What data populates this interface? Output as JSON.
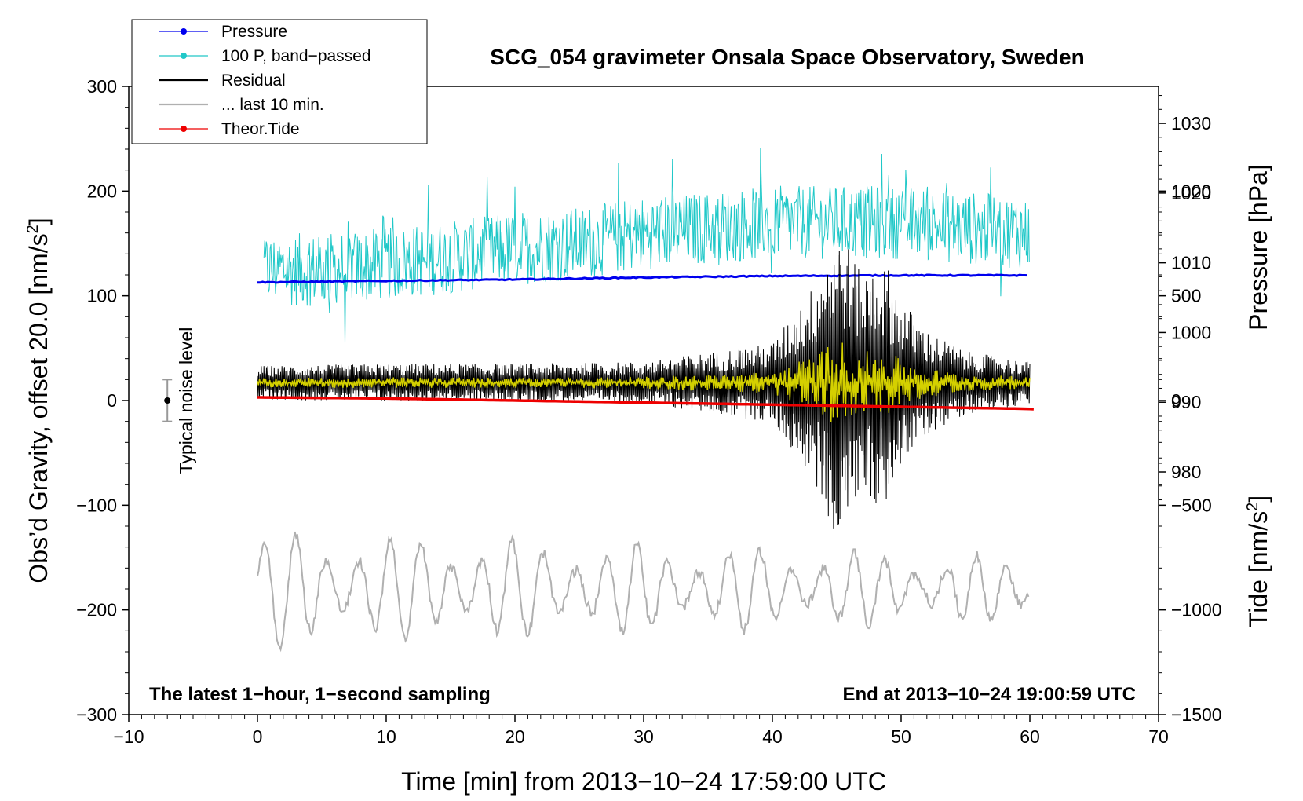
{
  "chart_data": {
    "type": "line",
    "title": "SCG_054 gravimeter Onsala Space Observatory, Sweden",
    "xlabel": "Time [min] from 2013−10−24 17:59:00 UTC",
    "ylabel": "Obs’d Gravity, offset 20.0 [nm/s",
    "ylabel_sup": "2",
    "ylabel_end": "]",
    "y2label": "Pressure [hPa]",
    "y3label": "Tide [nm/s",
    "y3label_sup": "2",
    "y3label_end": "]",
    "xlim": [
      -10,
      70
    ],
    "ylim": [
      -300,
      300
    ],
    "pressure_axis": {
      "ticks": [
        980,
        990,
        1000,
        1010,
        1020,
        1030
      ],
      "tick_labels": [
        "980",
        "990",
        "1000",
        "1010",
        "1020",
        "1030"
      ],
      "range": [
        945.2,
        1035.3
      ]
    },
    "tide_axis": {
      "ticks": [
        -1500,
        -1000,
        -500,
        0,
        500,
        1000
      ],
      "tick_labels": [
        "−1500",
        "−1000",
        "−500",
        "0",
        "500",
        "1000"
      ],
      "range": [
        -1500,
        1500
      ]
    },
    "x_ticks": [
      -10,
      0,
      10,
      20,
      30,
      40,
      50,
      60,
      70
    ],
    "x_tick_labels": [
      "−10",
      "0",
      "10",
      "20",
      "30",
      "40",
      "50",
      "60",
      "70"
    ],
    "y_ticks": [
      -300,
      -200,
      -100,
      0,
      100,
      200,
      300
    ],
    "y_tick_labels": [
      "−300",
      "−200",
      "−100",
      "0",
      "100",
      "200",
      "300"
    ],
    "annotations": {
      "bottom_left": "The latest 1−hour, 1−second sampling",
      "bottom_right": "End at 2013−10−24 19:00:59 UTC",
      "noise_label": "Typical noise level"
    },
    "noise_bar": {
      "x": -7,
      "center": 0,
      "half_range": 20
    },
    "legend": [
      {
        "name": "Pressure",
        "color": "#0000ee",
        "marker": true
      },
      {
        "name": "100 P, band−passed",
        "color": "#20c8c8",
        "marker": true
      },
      {
        "name": "Residual",
        "color": "#000000",
        "marker": false
      },
      {
        "name": "... last 10 min.",
        "color": "#b0b0b0",
        "marker": false
      },
      {
        "name": "Theor.Tide",
        "color": "#ee0000",
        "marker": true
      }
    ],
    "series": [
      {
        "name": "Pressure",
        "axis": "pressure",
        "color": "#0000ee",
        "x": [
          0,
          10,
          20,
          30,
          40,
          50,
          60
        ],
        "values": [
          1007.2,
          1007.4,
          1007.6,
          1007.9,
          1008.1,
          1008.2,
          1008.2
        ]
      },
      {
        "name": "100 P, band−passed",
        "axis": "gravity",
        "color": "#20c8c8",
        "x": [
          0,
          5,
          10,
          15,
          20,
          25,
          30,
          35,
          40,
          45,
          50,
          55,
          60
        ],
        "values": [
          125,
          125,
          130,
          137,
          145,
          150,
          160,
          165,
          170,
          170,
          170,
          165,
          160
        ],
        "noise_amplitude": 35
      },
      {
        "name": "Residual",
        "axis": "gravity",
        "color": "#000000",
        "x": [
          0,
          10,
          20,
          30,
          40,
          43,
          45,
          46,
          47,
          48,
          49,
          50,
          52,
          55,
          60
        ],
        "values": [
          17,
          17,
          17,
          17,
          17,
          17,
          17,
          17,
          17,
          17,
          17,
          17,
          17,
          17,
          17
        ],
        "envelope": [
          16,
          18,
          18,
          20,
          38,
          90,
          150,
          130,
          100,
          120,
          110,
          80,
          50,
          30,
          20
        ]
      },
      {
        "name": "... last 10 min.",
        "axis": "gravity",
        "color": "#b0b0b0",
        "x": [
          0,
          60
        ],
        "values": [
          -180,
          -180
        ],
        "envelope": [
          55,
          30
        ]
      },
      {
        "name": "Theor.Tide",
        "axis": "tide",
        "color": "#ee0000",
        "x": [
          0,
          10,
          20,
          30,
          40,
          50,
          60,
          60.5
        ],
        "values": [
          15,
          10,
          0,
          -10,
          -20,
          -30,
          -40,
          -42
        ]
      }
    ]
  }
}
